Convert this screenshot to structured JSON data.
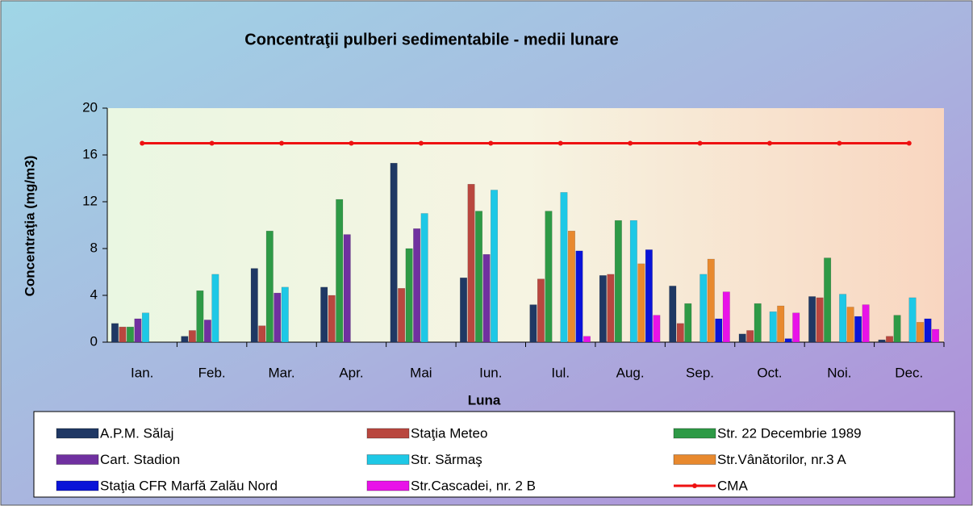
{
  "chart_data": {
    "type": "bar",
    "title": "Concentraţii pulberi sedimentabile - medii lunare",
    "x_label": "Luna",
    "y_label": "Concentraţia (mg/m3)",
    "categories": [
      "Ian.",
      "Feb.",
      "Mar.",
      "Apr.",
      "Mai",
      "Iun.",
      "Iul.",
      "Aug.",
      "Sep.",
      "Oct.",
      "Noi.",
      "Dec."
    ],
    "ylim": [
      0,
      20
    ],
    "yticks": [
      0,
      4,
      8,
      12,
      16,
      20
    ],
    "grid": false,
    "legend": "bottom",
    "series": [
      {
        "name": "A.P.M. Sălaj",
        "color": "#1f3864",
        "values": [
          1.6,
          0.5,
          6.3,
          4.7,
          15.3,
          5.5,
          3.2,
          5.7,
          4.8,
          0.7,
          3.9,
          0.2
        ]
      },
      {
        "name": "Staţia Meteo",
        "color": "#b9473f",
        "values": [
          1.3,
          1.0,
          1.4,
          4.0,
          4.6,
          13.5,
          5.4,
          5.8,
          1.6,
          1.0,
          3.8,
          0.5
        ]
      },
      {
        "name": "Str. 22 Decembrie 1989",
        "color": "#2e9a46",
        "values": [
          1.3,
          4.4,
          9.5,
          12.2,
          8.0,
          11.2,
          11.2,
          10.4,
          3.3,
          3.3,
          7.2,
          2.3
        ]
      },
      {
        "name": "Cart. Stadion",
        "color": "#7030a0",
        "values": [
          2.0,
          1.9,
          4.2,
          9.2,
          9.7,
          7.5,
          null,
          null,
          null,
          null,
          null,
          null
        ]
      },
      {
        "name": "Str. Sărmaş",
        "color": "#1ec8e6",
        "values": [
          2.5,
          5.8,
          4.7,
          null,
          11.0,
          13.0,
          12.8,
          10.4,
          5.8,
          2.6,
          4.1,
          3.8
        ]
      },
      {
        "name": "Str.Vânătorilor, nr.3 A",
        "color": "#e8892e",
        "values": [
          null,
          null,
          null,
          null,
          null,
          null,
          9.5,
          6.7,
          7.1,
          3.1,
          3.0,
          1.7
        ]
      },
      {
        "name": "Staţia CFR Marfă Zalău Nord",
        "color": "#0a14d8",
        "values": [
          null,
          null,
          null,
          null,
          null,
          null,
          7.8,
          7.9,
          2.0,
          0.3,
          2.2,
          2.0
        ]
      },
      {
        "name": "Str.Cascadei, nr. 2 B",
        "color": "#e812e8",
        "values": [
          null,
          null,
          null,
          null,
          null,
          null,
          0.5,
          2.3,
          4.3,
          2.5,
          3.2,
          1.1
        ]
      },
      {
        "name": "CMA",
        "color": "#ee1111",
        "type": "line",
        "values": [
          17,
          17,
          17,
          17,
          17,
          17,
          17,
          17,
          17,
          17,
          17,
          17
        ]
      }
    ]
  }
}
